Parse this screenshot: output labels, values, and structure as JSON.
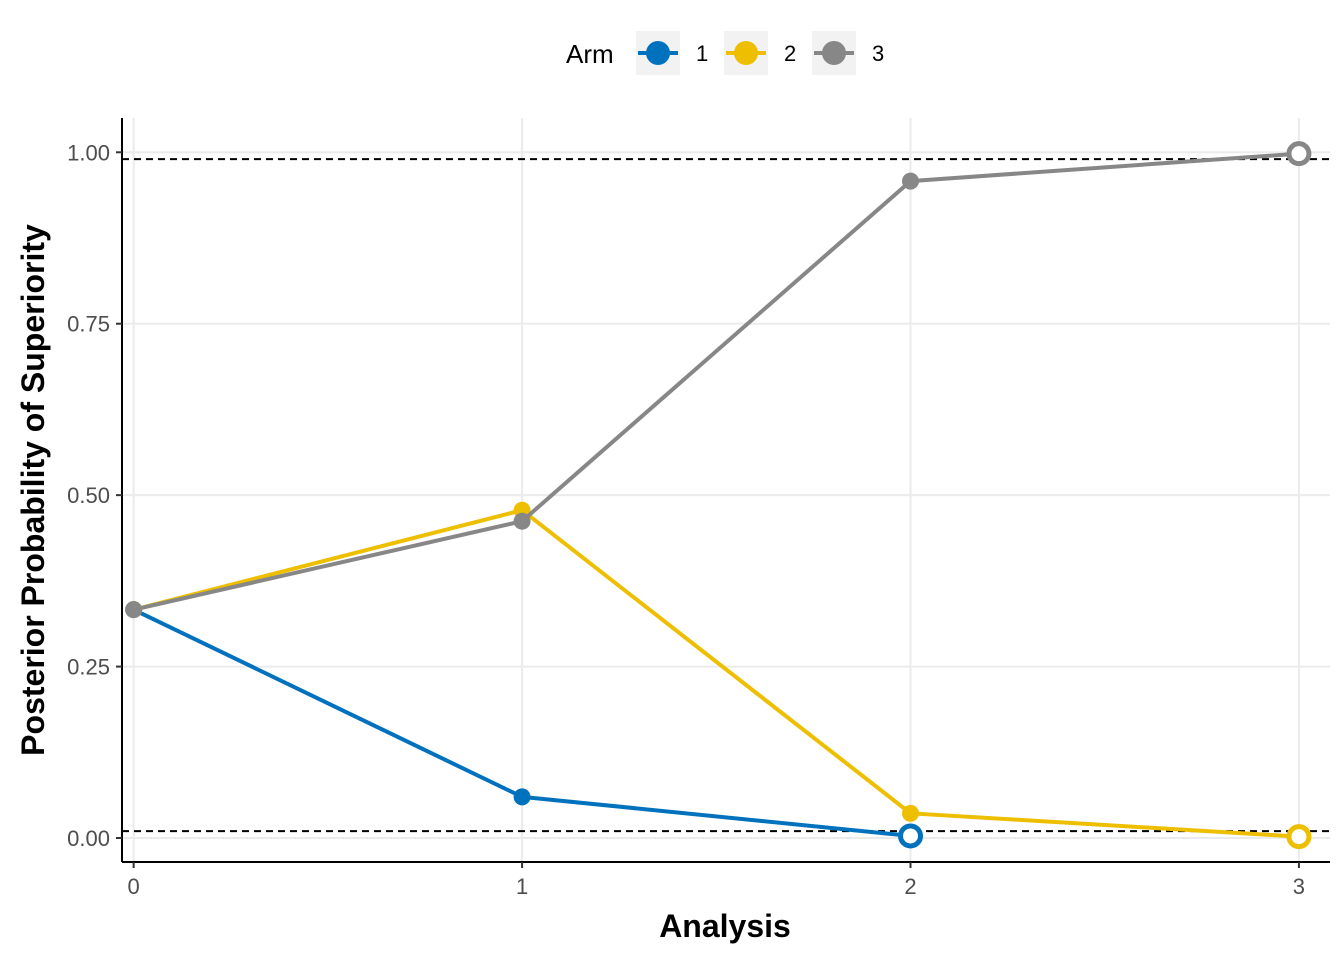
{
  "chart_data": {
    "type": "line",
    "xlabel": "Analysis",
    "ylabel": "Posterior Probability of Superiority",
    "x": [
      0,
      1,
      2,
      3
    ],
    "xlim": [
      -0.03,
      3.08
    ],
    "ylim": [
      -0.035,
      1.05
    ],
    "x_ticks": [
      "0",
      "1",
      "2",
      "3"
    ],
    "y_ticks": [
      "0.00",
      "0.25",
      "0.50",
      "0.75",
      "1.00"
    ],
    "y_tick_values": [
      0,
      0.25,
      0.5,
      0.75,
      1.0
    ],
    "grid": true,
    "thresholds": [
      0.99,
      0.01
    ],
    "legend": {
      "title": "Arm",
      "position": "top"
    },
    "series": [
      {
        "name": "1",
        "color": "#0072bd",
        "points": [
          {
            "x": 0,
            "y": 0.333
          },
          {
            "x": 1,
            "y": 0.06
          },
          {
            "x": 2,
            "y": 0.003,
            "open": true
          }
        ]
      },
      {
        "name": "2",
        "color": "#eebf00",
        "points": [
          {
            "x": 0,
            "y": 0.333
          },
          {
            "x": 1,
            "y": 0.478
          },
          {
            "x": 2,
            "y": 0.036
          },
          {
            "x": 3,
            "y": 0.002,
            "open": true
          }
        ]
      },
      {
        "name": "3",
        "color": "#878787",
        "points": [
          {
            "x": 0,
            "y": 0.333
          },
          {
            "x": 1,
            "y": 0.462
          },
          {
            "x": 2,
            "y": 0.958
          },
          {
            "x": 3,
            "y": 0.998,
            "open": true
          }
        ]
      }
    ]
  }
}
